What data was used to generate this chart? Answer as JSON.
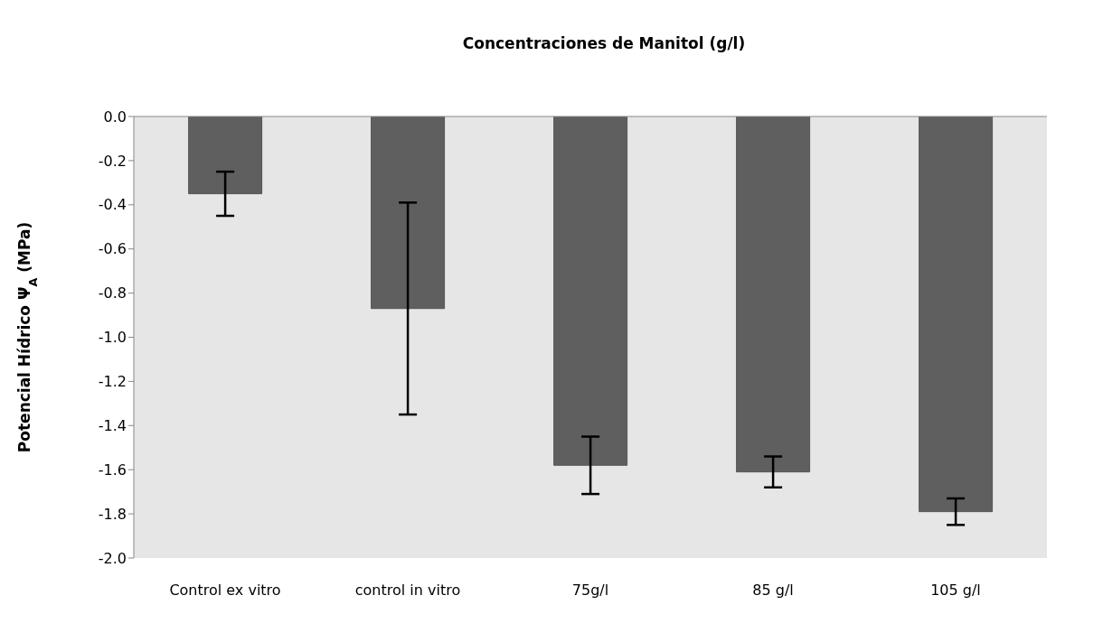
{
  "chart_data": {
    "type": "bar",
    "title": "Concentraciones de Manitol (g/l)",
    "ylabel": "Potencial Hídrico Ψ$_{A}$ (MPa)",
    "categories": [
      "Control ex vitro",
      "control in vitro",
      "75g/l",
      "85 g/l",
      "105 g/l"
    ],
    "values": [
      -0.35,
      -0.87,
      -1.58,
      -1.61,
      -1.79
    ],
    "errors": [
      0.1,
      0.48,
      0.13,
      0.07,
      0.06
    ],
    "color": "#5f5f5f",
    "ylim": [
      -2.0,
      0.0
    ],
    "yticks": [
      {
        "value": -2.0,
        "label": "-2.0"
      },
      {
        "value": -1.8,
        "label": "-1.8"
      },
      {
        "value": -1.6,
        "label": "-1.6"
      },
      {
        "value": -1.4,
        "label": "-1.4"
      },
      {
        "value": -1.2,
        "label": "-1.2"
      },
      {
        "value": -1.0,
        "label": "-1.0"
      },
      {
        "value": -0.8,
        "label": "-0.8"
      },
      {
        "value": -0.6,
        "label": "-0.6"
      },
      {
        "value": -0.4,
        "label": "-0.4"
      },
      {
        "value": -0.2,
        "label": "-0.2"
      },
      {
        "value": 0.0,
        "label": "0.0"
      }
    ],
    "grid": false,
    "legend": false
  }
}
